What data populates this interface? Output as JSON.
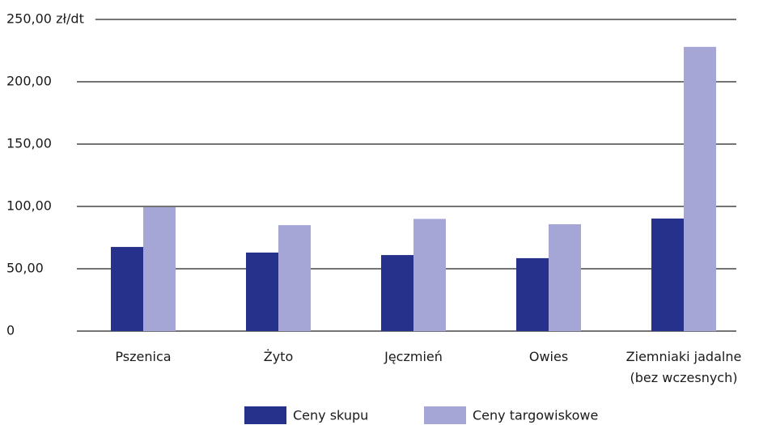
{
  "chart_data": {
    "type": "bar",
    "categories": [
      "Pszenica",
      "Żyto",
      "Jęczmień",
      "Owies",
      "Ziemniaki jadalne\n(bez wczesnych)"
    ],
    "series": [
      {
        "name": "Ceny skupu",
        "color": "#25318a",
        "values": [
          67.5,
          63,
          61,
          58.5,
          90.3
        ]
      },
      {
        "name": "Ceny targowiskowe",
        "color": "#a5a5d6",
        "values": [
          99.4,
          85,
          90,
          85.7,
          228
        ]
      }
    ],
    "ylim": [
      0,
      250
    ],
    "yticks": [
      0,
      {
        "value": 50,
        "label": "50,00"
      },
      {
        "value": 100,
        "label": "100,00"
      },
      {
        "value": 150,
        "label": "150,00"
      },
      {
        "value": 200,
        "label": "200,00"
      },
      {
        "value": 250,
        "label": "250,00 zł/dt"
      }
    ],
    "grid": true,
    "legend": "bottom"
  }
}
